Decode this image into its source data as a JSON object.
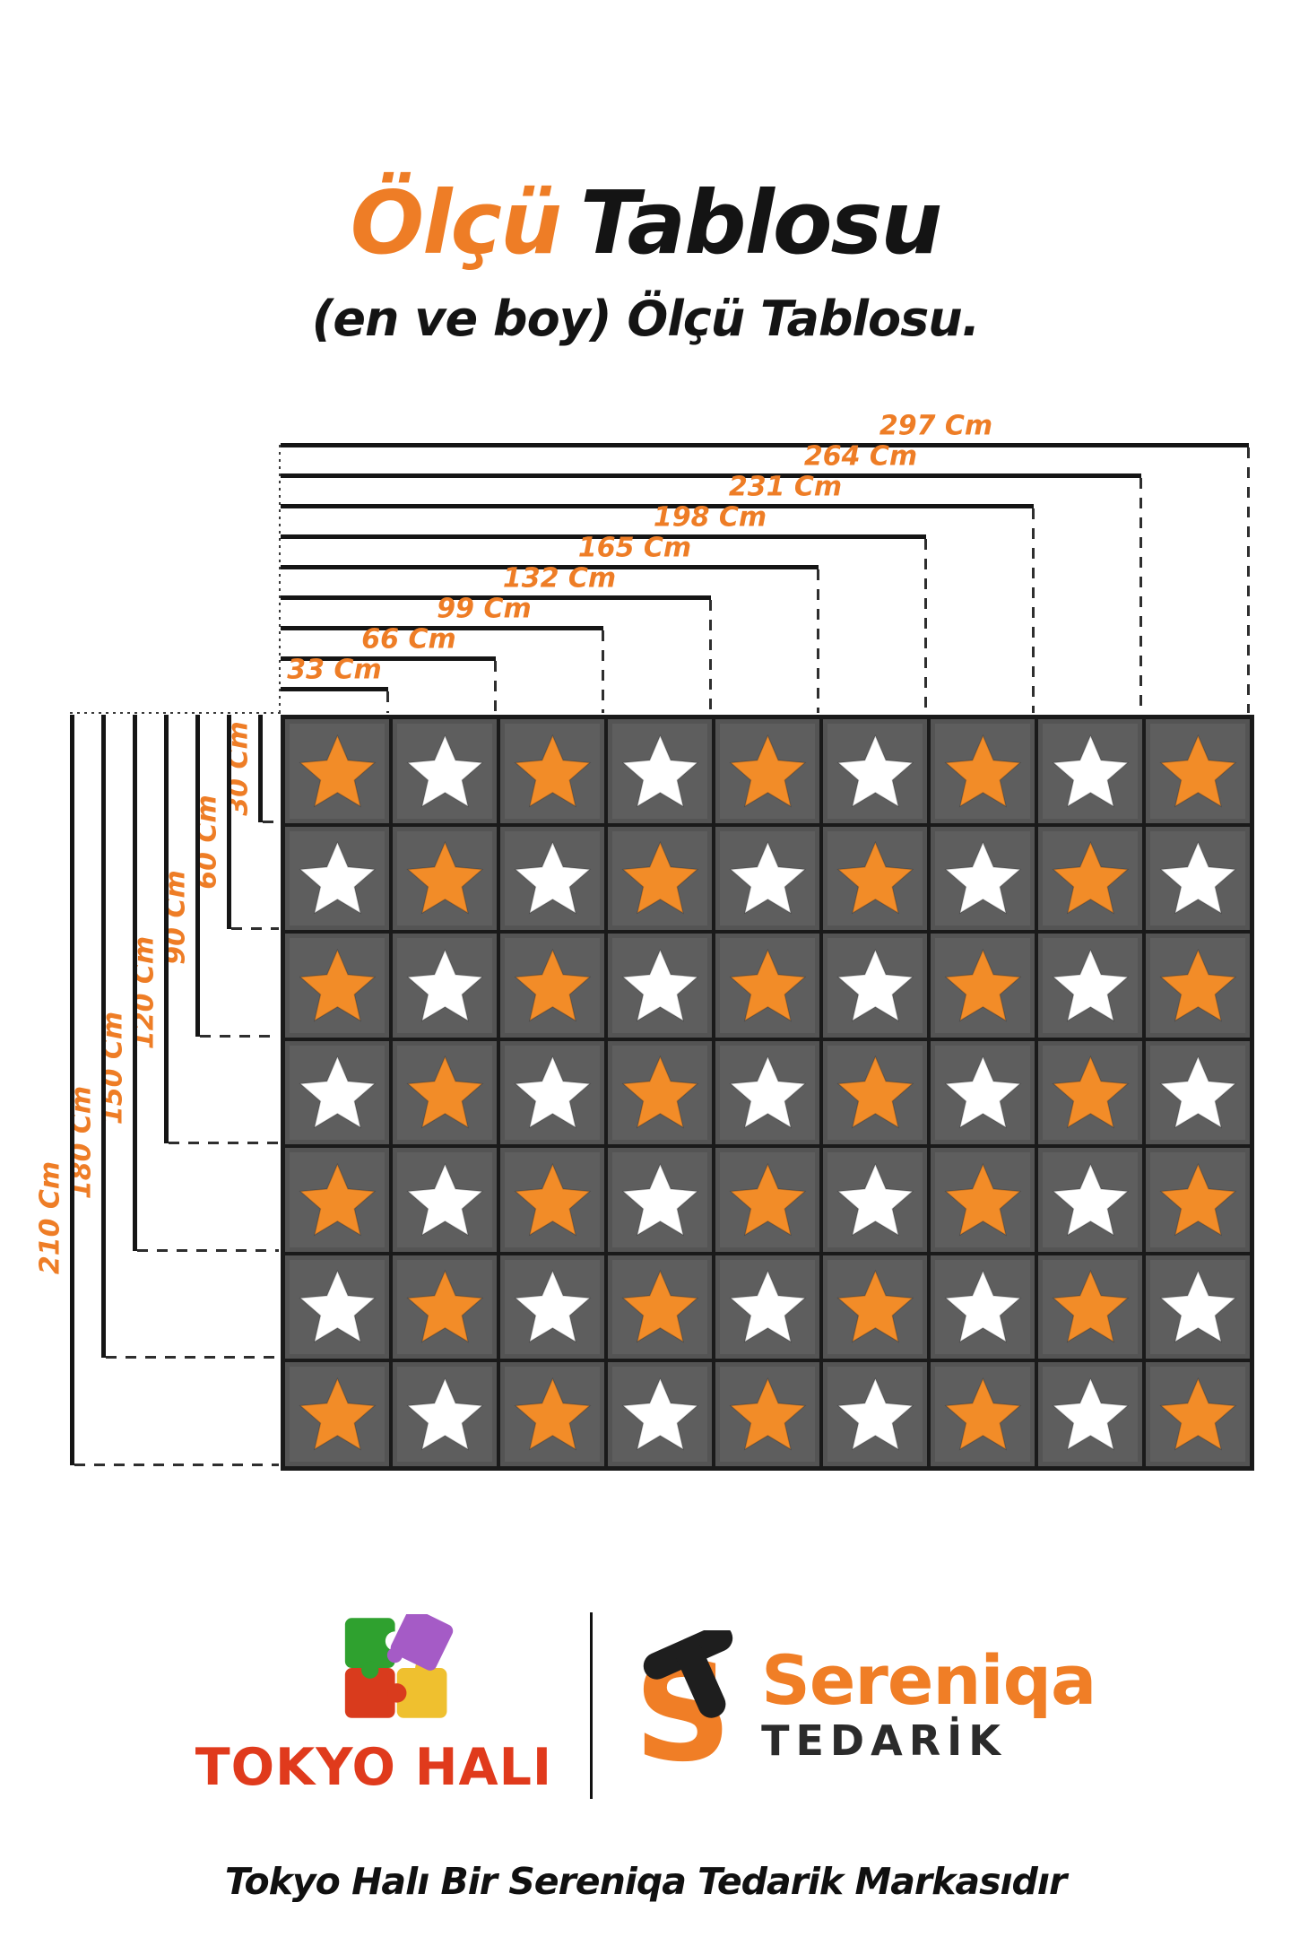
{
  "title": {
    "accent": "Ölçü",
    "rest": "Tablosu"
  },
  "subtitle": "(en ve boy) Ölçü Tablosu.",
  "diagram": {
    "unit": "Cm",
    "max_width_cm": 297,
    "max_height_cm": 210,
    "widths": [
      {
        "label": "297 Cm",
        "cm": 297
      },
      {
        "label": "264 Cm",
        "cm": 264
      },
      {
        "label": "231 Cm",
        "cm": 231
      },
      {
        "label": "198 Cm",
        "cm": 198
      },
      {
        "label": "165 Cm",
        "cm": 165
      },
      {
        "label": "132 Cm",
        "cm": 132
      },
      {
        "label": "99 Cm",
        "cm": 99
      },
      {
        "label": "66 Cm",
        "cm": 66
      },
      {
        "label": "33 Cm",
        "cm": 33
      }
    ],
    "heights": [
      {
        "label": "30 Cm",
        "cm": 30
      },
      {
        "label": "60 Cm",
        "cm": 60
      },
      {
        "label": "90 Cm",
        "cm": 90
      },
      {
        "label": "120 Cm",
        "cm": 120
      },
      {
        "label": "150 Cm",
        "cm": 150
      },
      {
        "label": "180 Cm",
        "cm": 180
      },
      {
        "label": "210 Cm",
        "cm": 210
      }
    ],
    "mat": {
      "rows": 7,
      "cols": 9,
      "pattern": "checkerboard",
      "first_star": "orange",
      "star_orange": "#F28C28",
      "star_white": "#FFFFFF",
      "tile_color": "#5E5E5E",
      "outline_color": "#1A1A1A"
    }
  },
  "brands": {
    "tokyo": {
      "wordmark": "TOKYO HALI",
      "icon": "puzzle-pieces-icon",
      "green": "#2FA12F",
      "purple": "#A55BC6",
      "red": "#D93B1D",
      "yellow": "#EFC02F",
      "text_red": "#E03A1C"
    },
    "sereniqa": {
      "wordmark": "Sereniqa",
      "subtext": "TEDARİK",
      "icon": "st-monogram-icon",
      "orange": "#F07E26",
      "dark": "#242424"
    }
  },
  "footer": "Tokyo Halı Bir Sereniqa Tedarik Markasıdır",
  "colors": {
    "accent_orange": "#EE7D26",
    "line_black": "#151515",
    "dash_gray": "#2E2E2E"
  }
}
